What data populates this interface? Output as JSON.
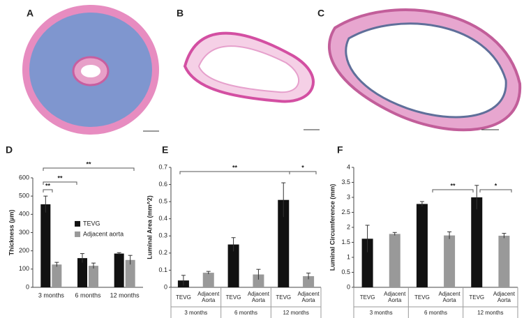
{
  "image_panels": [
    "A",
    "B",
    "C"
  ],
  "chart_data": [
    {
      "type": "bar",
      "label": "D",
      "ylabel": "Thickness (µm)",
      "categories": [
        "3 months",
        "6 months",
        "12 months"
      ],
      "series": [
        {
          "name": "TEVG",
          "color": "#111111",
          "values": [
            455,
            160,
            185
          ],
          "errors": [
            45,
            25,
            5
          ]
        },
        {
          "name": "Adjacent aorta",
          "color": "#999999",
          "values": [
            125,
            118,
            150
          ],
          "errors": [
            12,
            15,
            25
          ]
        }
      ],
      "ylim": [
        0,
        600
      ],
      "yticks": [
        0,
        100,
        200,
        300,
        400,
        500,
        600
      ],
      "legend": "right",
      "annotations": [
        "**",
        "**",
        "**"
      ]
    },
    {
      "type": "bar",
      "label": "E",
      "ylabel": "Luminal Area (mm^2)",
      "categories": [
        "3 months",
        "6 months",
        "12 months"
      ],
      "bar_labels": [
        "TEVG",
        "Adjacent Aorta"
      ],
      "series": [
        {
          "name": "TEVG",
          "color": "#111111",
          "values": [
            0.04,
            0.25,
            0.51
          ],
          "errors": [
            0.03,
            0.04,
            0.1
          ]
        },
        {
          "name": "Adjacent Aorta",
          "color": "#999999",
          "values": [
            0.085,
            0.075,
            0.065
          ],
          "errors": [
            0.008,
            0.03,
            0.018
          ]
        }
      ],
      "ylim": [
        0,
        0.7
      ],
      "yticks": [
        0,
        0.1,
        0.2,
        0.3,
        0.4,
        0.5,
        0.6,
        0.7
      ],
      "annotations": [
        "**",
        "*"
      ]
    },
    {
      "type": "bar",
      "label": "F",
      "ylabel": "Luminal Circumference (mm)",
      "categories": [
        "3 months",
        "6 months",
        "12 months"
      ],
      "bar_labels": [
        "TEVG",
        "Adjacent Aorta"
      ],
      "series": [
        {
          "name": "TEVG",
          "color": "#111111",
          "values": [
            1.62,
            2.78,
            3.0
          ],
          "errors": [
            0.45,
            0.08,
            0.4
          ]
        },
        {
          "name": "Adjacent Aorta",
          "color": "#999999",
          "values": [
            1.78,
            1.73,
            1.72
          ],
          "errors": [
            0.05,
            0.12,
            0.08
          ]
        }
      ],
      "ylim": [
        0,
        4
      ],
      "yticks": [
        0,
        0.5,
        1,
        1.5,
        2,
        2.5,
        3,
        3.5,
        4
      ],
      "annotations": [
        "**",
        "*"
      ]
    }
  ]
}
